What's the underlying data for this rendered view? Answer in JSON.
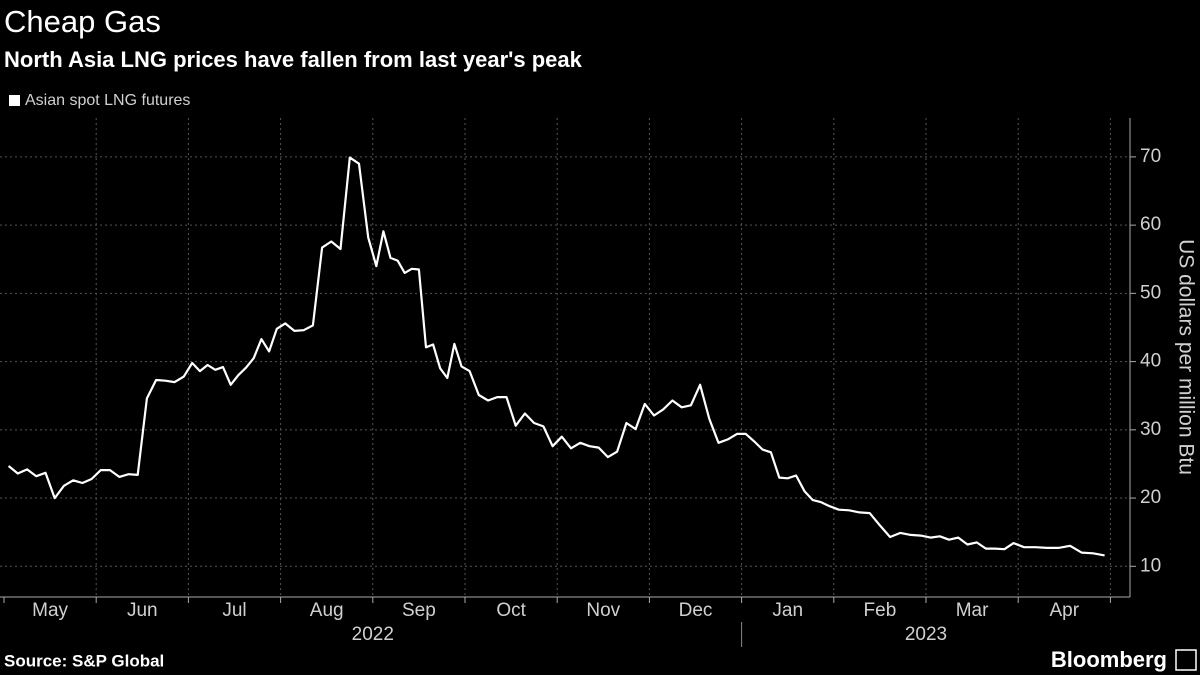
{
  "chart_data": {
    "type": "line",
    "title": "Cheap Gas",
    "subtitle": "North Asia LNG prices have fallen from last year's peak",
    "source": "Source: S&P Global",
    "brand": "Bloomberg",
    "y_label": "US dollars per million Btu",
    "x": [
      "2022-05",
      "2022-05",
      "2022-05",
      "2022-05",
      "2022-05",
      "2022-05",
      "2022-05",
      "2022-05",
      "2022-05",
      "2022-05",
      "2022-06",
      "2022-06",
      "2022-06",
      "2022-06",
      "2022-06",
      "2022-06",
      "2022-06",
      "2022-06",
      "2022-06",
      "2022-06",
      "2022-07",
      "2022-07",
      "2022-07",
      "2022-07",
      "2022-07",
      "2022-07",
      "2022-07",
      "2022-07",
      "2022-07",
      "2022-07",
      "2022-07",
      "2022-07",
      "2022-08",
      "2022-08",
      "2022-08",
      "2022-08",
      "2022-08",
      "2022-08",
      "2022-08",
      "2022-08",
      "2022-08",
      "2022-08",
      "2022-09",
      "2022-09",
      "2022-09",
      "2022-09",
      "2022-09",
      "2022-09",
      "2022-09",
      "2022-09",
      "2022-09",
      "2022-09",
      "2022-09",
      "2022-09",
      "2022-09",
      "2022-10",
      "2022-10",
      "2022-10",
      "2022-10",
      "2022-10",
      "2022-10",
      "2022-10",
      "2022-10",
      "2022-10",
      "2022-10",
      "2022-11",
      "2022-11",
      "2022-11",
      "2022-11",
      "2022-11",
      "2022-11",
      "2022-11",
      "2022-11",
      "2022-11",
      "2022-11",
      "2022-12",
      "2022-12",
      "2022-12",
      "2022-12",
      "2022-12",
      "2022-12",
      "2022-12",
      "2022-12",
      "2022-12",
      "2022-12",
      "2023-01",
      "2023-01",
      "2023-01",
      "2023-01",
      "2023-01",
      "2023-01",
      "2023-01",
      "2023-01",
      "2023-01",
      "2023-01",
      "2023-01",
      "2023-02",
      "2023-02",
      "2023-02",
      "2023-02",
      "2023-02",
      "2023-02",
      "2023-02",
      "2023-02",
      "2023-02",
      "2023-03",
      "2023-03",
      "2023-03",
      "2023-03",
      "2023-03",
      "2023-03",
      "2023-03",
      "2023-03",
      "2023-03",
      "2023-03",
      "2023-04",
      "2023-04",
      "2023-04",
      "2023-04",
      "2023-04",
      "2023-04",
      "2023-04",
      "2023-04"
    ],
    "series": [
      {
        "name": "Asian spot LNG futures",
        "color": "#ffffff",
        "values": [
          24.7,
          23.6,
          24.2,
          23.2,
          23.7,
          20.0,
          21.8,
          22.6,
          22.2,
          22.8,
          24.1,
          24.1,
          23.1,
          23.5,
          23.4,
          34.6,
          37.3,
          37.2,
          37.0,
          37.8,
          39.8,
          38.6,
          39.5,
          38.8,
          39.2,
          36.6,
          38.0,
          39.1,
          40.5,
          43.3,
          41.5,
          44.8,
          45.6,
          44.5,
          44.6,
          45.3,
          56.7,
          57.6,
          56.5,
          69.9,
          69.0,
          58.2,
          54.0,
          59.1,
          55.2,
          54.8,
          53.0,
          53.6,
          53.5,
          42.1,
          42.5,
          39.0,
          37.6,
          42.6,
          39.3,
          38.6,
          35.1,
          34.3,
          34.8,
          34.8,
          30.6,
          32.4,
          31.0,
          30.5,
          27.6,
          29.0,
          27.3,
          28.1,
          27.6,
          27.4,
          26.0,
          26.8,
          31.0,
          30.1,
          33.8,
          32.1,
          33.0,
          34.3,
          33.3,
          33.6,
          36.6,
          31.6,
          28.1,
          28.6,
          29.4,
          29.4,
          28.3,
          27.1,
          26.7,
          23.0,
          22.9,
          23.3,
          21.0,
          19.7,
          19.4,
          18.8,
          18.3,
          18.2,
          17.9,
          17.8,
          16.0,
          14.3,
          14.9,
          14.6,
          14.5,
          14.2,
          14.4,
          13.9,
          14.2,
          13.2,
          13.5,
          12.6,
          12.6,
          12.5,
          13.4,
          12.8,
          12.8,
          12.7,
          12.7,
          13.0,
          12.0,
          11.9,
          11.6
        ]
      }
    ],
    "xticks": [
      {
        "value": "2022-05",
        "label": "May"
      },
      {
        "value": "2022-06",
        "label": "Jun"
      },
      {
        "value": "2022-07",
        "label": "Jul"
      },
      {
        "value": "2022-08",
        "label": "Aug"
      },
      {
        "value": "2022-09",
        "label": "Sep"
      },
      {
        "value": "2022-10",
        "label": "Oct"
      },
      {
        "value": "2022-11",
        "label": "Nov"
      },
      {
        "value": "2022-12",
        "label": "Dec"
      },
      {
        "value": "2023-01",
        "label": "Jan"
      },
      {
        "value": "2023-02",
        "label": "Feb"
      },
      {
        "value": "2023-03",
        "label": "Mar"
      },
      {
        "value": "2023-04",
        "label": "Apr"
      }
    ],
    "years": [
      "2022",
      "2023"
    ],
    "ylim": [
      5.5,
      75.7
    ],
    "yticks": [
      10,
      20,
      30,
      40,
      50,
      60,
      70
    ],
    "grid": true
  }
}
